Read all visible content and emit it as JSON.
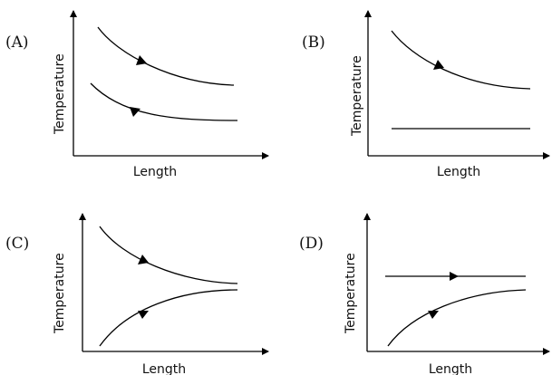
{
  "panels": [
    {
      "id": "A",
      "label": "(A)",
      "xlabel": "Length",
      "ylabel": "Temperature"
    },
    {
      "id": "B",
      "label": "(B)",
      "xlabel": "Length",
      "ylabel": "Temperature"
    },
    {
      "id": "C",
      "label": "(C)",
      "xlabel": "Length",
      "ylabel": "Temperature"
    },
    {
      "id": "D",
      "label": "(D)",
      "xlabel": "Length",
      "ylabel": "Temperature"
    }
  ]
}
